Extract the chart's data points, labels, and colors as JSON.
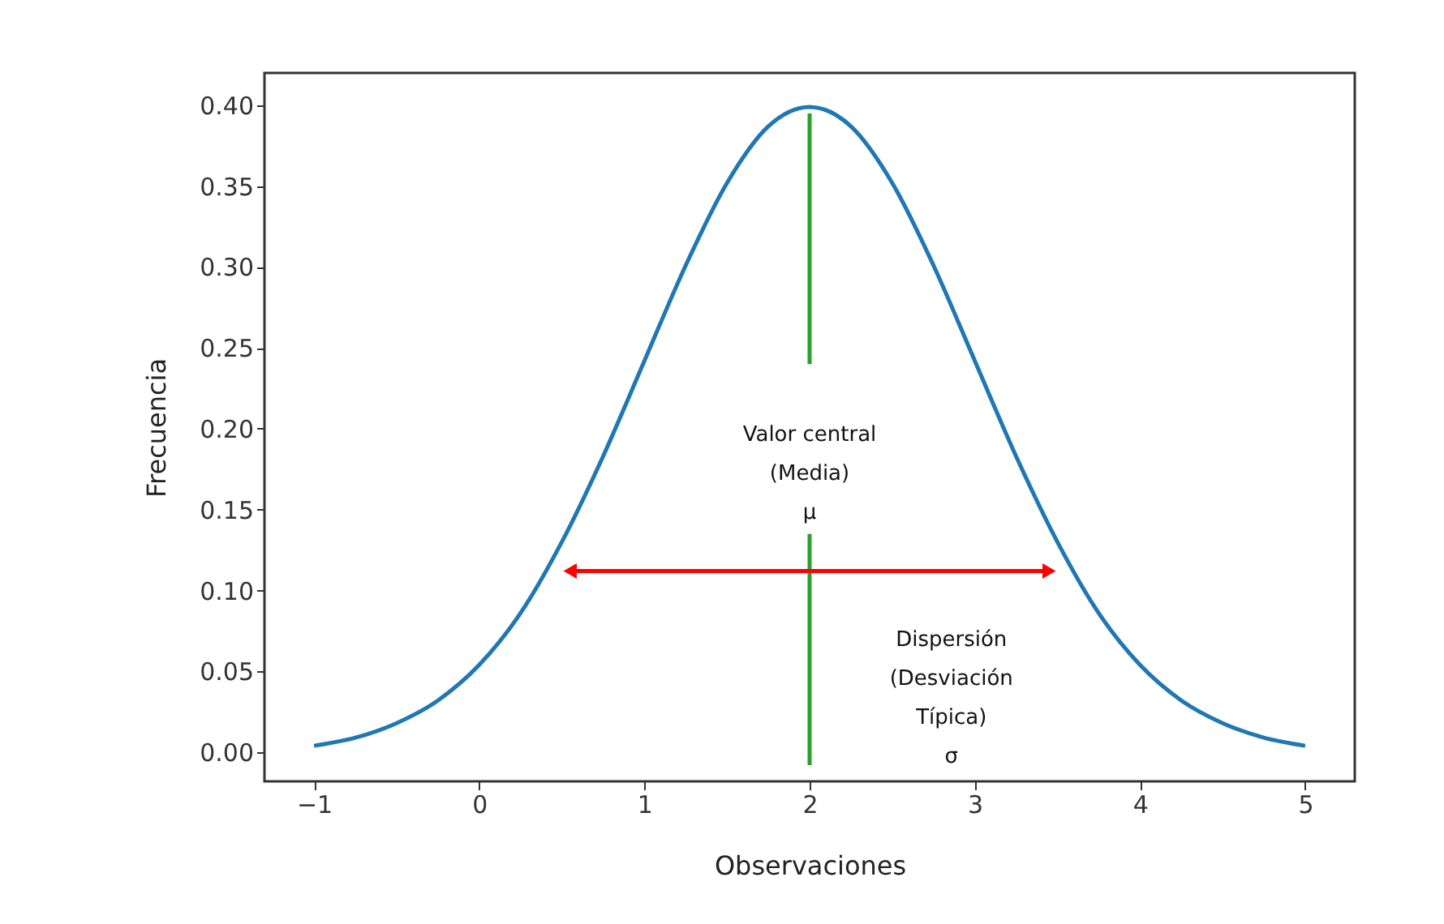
{
  "chart_data": {
    "type": "line",
    "xlabel": "Observaciones",
    "ylabel": "Frecuencia",
    "xlim": [
      -1.3,
      5.3
    ],
    "ylim": [
      -0.018,
      0.42
    ],
    "xticks": [
      {
        "value": -1,
        "label": "−1"
      },
      {
        "value": 0,
        "label": "0"
      },
      {
        "value": 1,
        "label": "1"
      },
      {
        "value": 2,
        "label": "2"
      },
      {
        "value": 3,
        "label": "3"
      },
      {
        "value": 4,
        "label": "4"
      },
      {
        "value": 5,
        "label": "5"
      }
    ],
    "yticks": [
      {
        "value": 0,
        "label": "0.00"
      },
      {
        "value": 0.05,
        "label": "0.05"
      },
      {
        "value": 0.1,
        "label": "0.10"
      },
      {
        "value": 0.15,
        "label": "0.15"
      },
      {
        "value": 0.2,
        "label": "0.20"
      },
      {
        "value": 0.25,
        "label": "0.25"
      },
      {
        "value": 0.3,
        "label": "0.30"
      },
      {
        "value": 0.35,
        "label": "0.35"
      },
      {
        "value": 0.4,
        "label": "0.40"
      }
    ],
    "line_style": "solid",
    "series": [
      {
        "color": "#1f77b4",
        "x": [
          -1,
          -0.75,
          -0.5,
          -0.25,
          0,
          0.25,
          0.5,
          0.75,
          1,
          1.25,
          1.5,
          1.75,
          2,
          2.25,
          2.5,
          2.75,
          3,
          3.25,
          3.5,
          3.75,
          4,
          4.25,
          4.5,
          4.75,
          5
        ],
        "values": [
          0.004,
          0.009,
          0.018,
          0.032,
          0.054,
          0.086,
          0.13,
          0.183,
          0.242,
          0.301,
          0.352,
          0.387,
          0.399,
          0.387,
          0.352,
          0.301,
          0.242,
          0.183,
          0.13,
          0.086,
          0.054,
          0.032,
          0.018,
          0.009,
          0.004
        ]
      },
      {
        "color": "#2ca02c",
        "x": [
          2,
          2
        ],
        "values": [
          -0.008,
          0.135
        ]
      },
      {
        "color": "#2ca02c",
        "x": [
          2,
          2
        ],
        "values": [
          0.24,
          0.395
        ]
      },
      {
        "color": "#ff0000",
        "marker": "triangle",
        "x": [
          0.55,
          3.45
        ],
        "values": [
          0.112,
          0.112
        ]
      }
    ],
    "annotations": [
      "Valor central\n(Media)\nμ",
      "Dispersión\n(Desviación\nTípica)\nσ"
    ]
  }
}
